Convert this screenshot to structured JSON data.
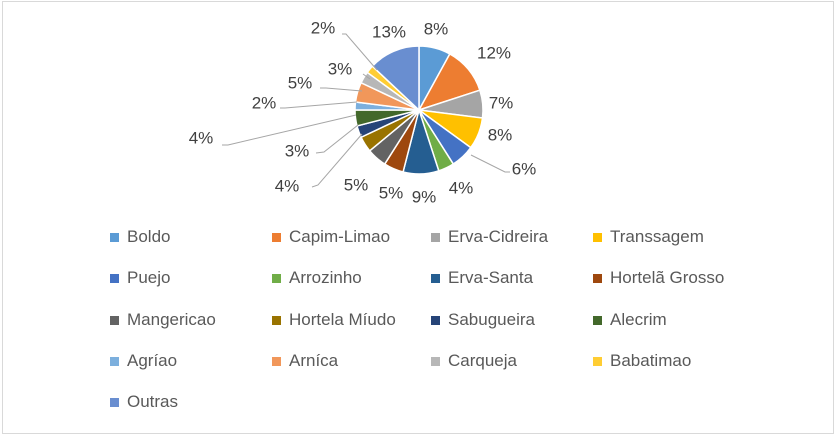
{
  "chart_data": {
    "type": "pie",
    "categories": [
      "Boldo",
      "Capim-Limao",
      "Erva-Cidreira",
      "Transsagem",
      "Puejo",
      "Arrozinho",
      "Erva-Santa",
      "Hortelã Grosso",
      "Mangericao",
      "Hortela Míudo",
      "Sabugueira",
      "Alecrim",
      "Agríao",
      "Arníca",
      "Carqueja",
      "Babatimao",
      "Outras"
    ],
    "values": [
      8,
      12,
      7,
      8,
      6,
      4,
      9,
      5,
      5,
      4,
      3,
      4,
      2,
      5,
      3,
      2,
      13
    ],
    "data_labels": [
      "8%",
      "12%",
      "7%",
      "8%",
      "6%",
      "4%",
      "9%",
      "5%",
      "5%",
      "4%",
      "3%",
      "4%",
      "2%",
      "5%",
      "3%",
      "2%",
      "13%"
    ],
    "colors": [
      "#5B9BD5",
      "#ED7D31",
      "#A5A5A5",
      "#FFC000",
      "#4472C4",
      "#70AD47",
      "#255E91",
      "#9E480E",
      "#636363",
      "#997300",
      "#264478",
      "#43682B",
      "#7CAFDD",
      "#F1975A",
      "#B7B7B7",
      "#FFCD33",
      "#698ED0"
    ],
    "legend_position": "bottom",
    "title": ""
  }
}
